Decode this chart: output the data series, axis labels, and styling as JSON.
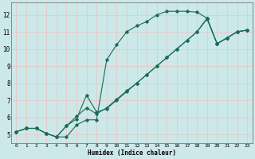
{
  "xlabel": "Humidex (Indice chaleur)",
  "bg_color": "#cce8e8",
  "grid_color": "#e8c8c8",
  "line_color": "#1a6b5a",
  "xlim": [
    -0.5,
    23.5
  ],
  "ylim": [
    4.5,
    12.7
  ],
  "xticks": [
    0,
    1,
    2,
    3,
    4,
    5,
    6,
    7,
    8,
    9,
    10,
    11,
    12,
    13,
    14,
    15,
    16,
    17,
    18,
    19,
    20,
    21,
    22,
    23
  ],
  "yticks": [
    5,
    6,
    7,
    8,
    9,
    10,
    11,
    12
  ],
  "curve1_x": [
    0,
    1,
    2,
    3,
    4,
    5,
    6,
    7,
    8,
    9,
    10,
    11,
    12,
    13,
    14,
    15,
    16,
    17,
    18,
    19,
    20,
    21,
    22,
    23
  ],
  "curve1_y": [
    5.15,
    5.35,
    5.35,
    5.05,
    4.85,
    4.85,
    5.55,
    5.85,
    5.85,
    9.35,
    10.25,
    11.0,
    11.35,
    11.6,
    12.0,
    12.2,
    12.2,
    12.2,
    12.15,
    11.8,
    10.3,
    10.65,
    11.0,
    11.1
  ],
  "curve2_x": [
    0,
    1,
    2,
    3,
    4,
    5,
    6,
    7,
    8,
    9,
    10,
    11,
    12,
    13,
    14,
    15,
    16,
    17,
    18,
    19,
    20,
    21,
    22,
    23
  ],
  "curve2_y": [
    5.15,
    5.35,
    5.35,
    5.05,
    4.85,
    5.5,
    6.05,
    6.55,
    6.2,
    6.55,
    7.05,
    7.55,
    8.0,
    8.5,
    9.0,
    9.5,
    10.0,
    10.5,
    11.0,
    11.8,
    10.3,
    10.65,
    11.0,
    11.1
  ],
  "curve3_x": [
    0,
    1,
    2,
    3,
    4,
    5,
    6,
    7,
    8,
    9,
    10,
    11,
    12,
    13,
    14,
    15,
    16,
    17,
    18,
    19,
    20,
    21,
    22,
    23
  ],
  "curve3_y": [
    5.15,
    5.35,
    5.35,
    5.05,
    4.85,
    5.5,
    5.9,
    7.3,
    6.3,
    6.5,
    7.0,
    7.5,
    8.0,
    8.5,
    9.0,
    9.5,
    10.0,
    10.5,
    11.0,
    11.75,
    10.3,
    10.65,
    11.0,
    11.1
  ]
}
